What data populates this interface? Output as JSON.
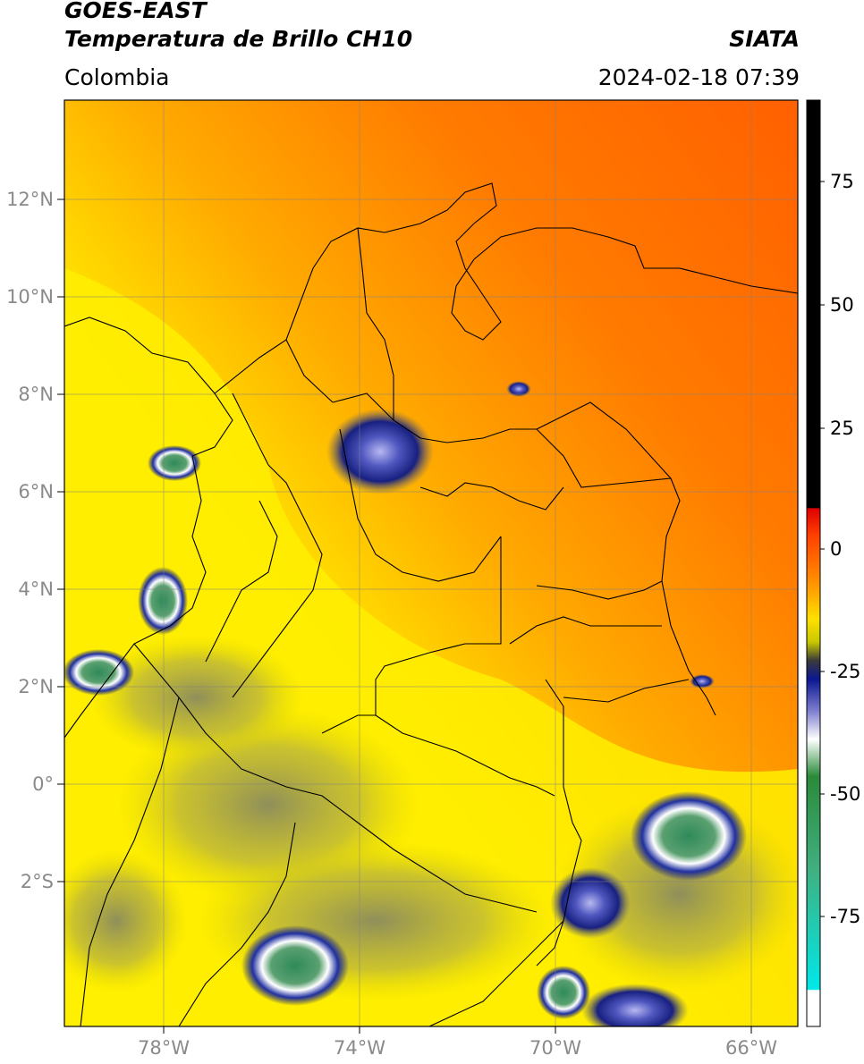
{
  "header": {
    "satellite": "GOES-EAST",
    "product": "Temperatura de Brillo CH10",
    "agency": "SIATA",
    "region": "Colombia",
    "timestamp": "2024-02-18 07:39"
  },
  "map": {
    "lat_labels": [
      "12°N",
      "10°N",
      "8°N",
      "6°N",
      "4°N",
      "2°N",
      "0°",
      "2°S"
    ],
    "lon_labels": [
      "78°W",
      "74°W",
      "70°W",
      "66°W"
    ],
    "colors": {
      "warm_orange": "#ff6a00",
      "yellow": "#ffee00",
      "olive": "#9a9a50",
      "navy": "#101880",
      "green": "#3a8a55"
    }
  },
  "colorbar": {
    "labels": [
      "75",
      "50",
      "25",
      "0",
      "-25",
      "-50",
      "-75"
    ],
    "stops": [
      "#000000",
      "#e00000",
      "#ff7a00",
      "#ffe000",
      "#3a3a3a",
      "#0a1890",
      "#ffffff",
      "#2a8a3a",
      "#00e0e0",
      "#ffffff"
    ]
  }
}
